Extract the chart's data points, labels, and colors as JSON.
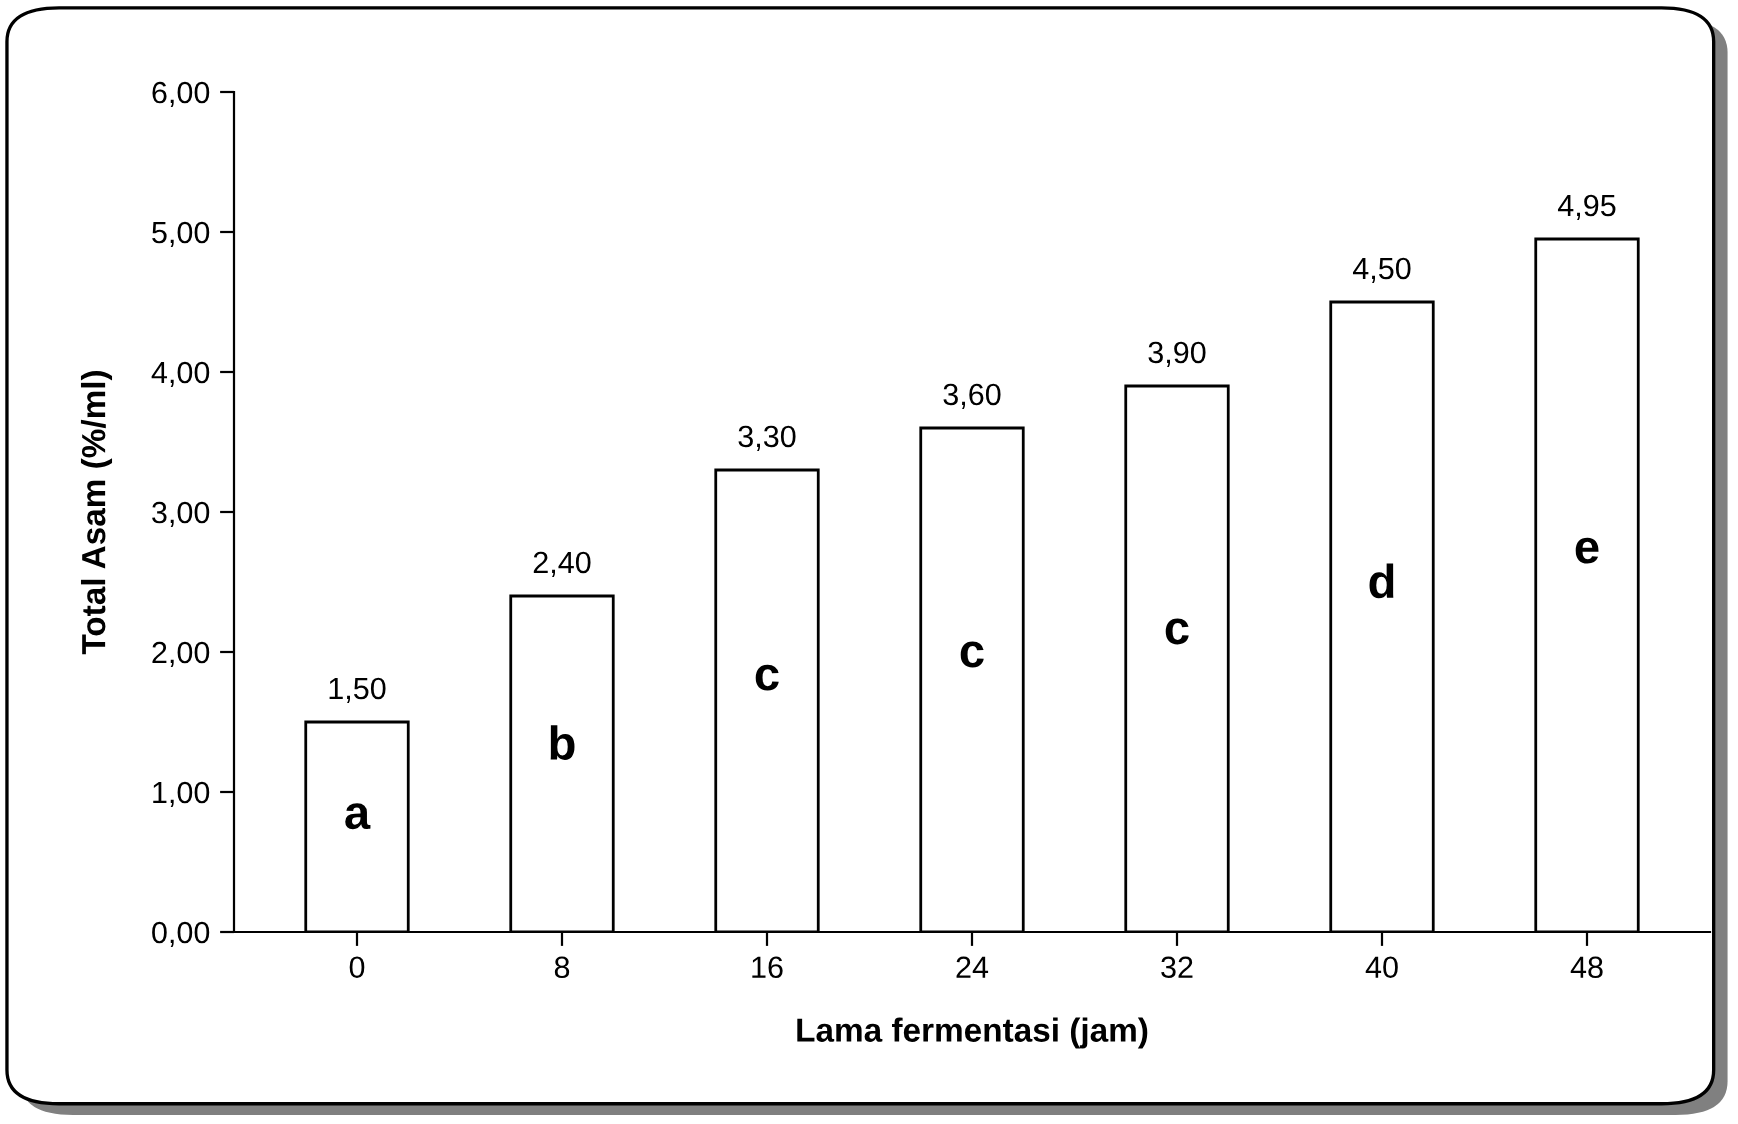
{
  "chart_data": {
    "type": "bar",
    "xlabel": "Lama fermentasi (jam)",
    "ylabel": "Total Asam (%/ml)",
    "categories": [
      "0",
      "8",
      "16",
      "24",
      "32",
      "40",
      "48"
    ],
    "values": [
      1.5,
      2.4,
      3.3,
      3.6,
      3.9,
      4.5,
      4.95
    ],
    "value_labels": [
      "1,50",
      "2,40",
      "3,30",
      "3,60",
      "3,90",
      "4,50",
      "4,95"
    ],
    "color": "#ffffff",
    "ylim": [
      0,
      6
    ],
    "yticks": [
      {
        "value": 0,
        "label": "0,00"
      },
      {
        "value": 1,
        "label": "1,00"
      },
      {
        "value": 2,
        "label": "2,00"
      },
      {
        "value": 3,
        "label": "3,00"
      },
      {
        "value": 4,
        "label": "4,00"
      },
      {
        "value": 5,
        "label": "5,00"
      },
      {
        "value": 6,
        "label": "6,00"
      }
    ],
    "annotations": [
      "a",
      "b",
      "c",
      "c",
      "c",
      "d",
      "e"
    ],
    "grid": false,
    "legend": false
  }
}
